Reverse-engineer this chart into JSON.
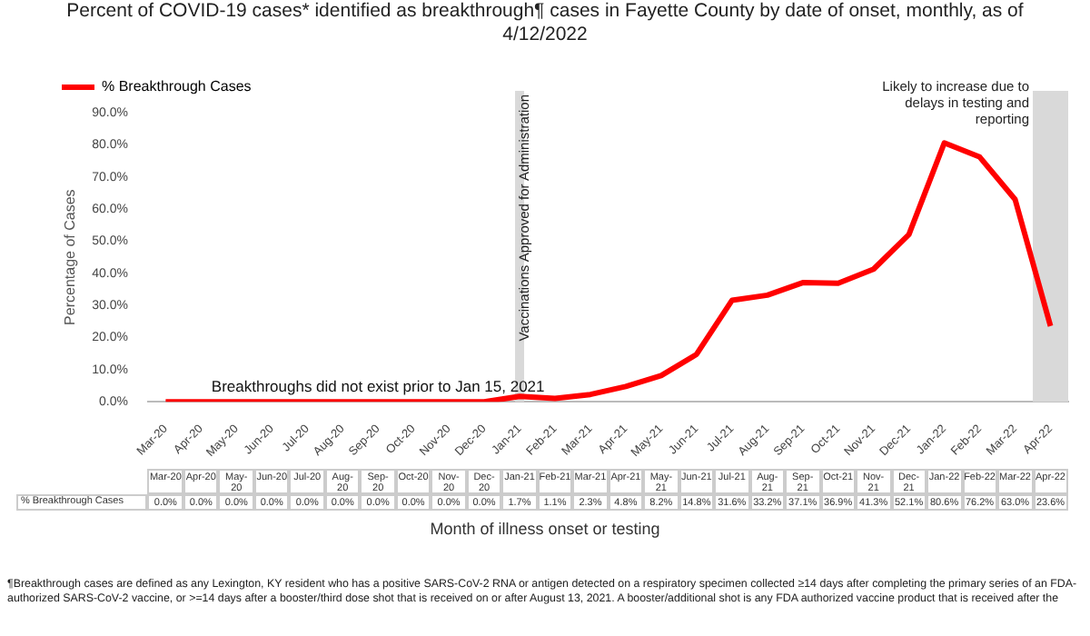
{
  "chart_data": {
    "type": "line",
    "title": "Percent of COVID-19 cases* identified as breakthrough¶ cases in Fayette County by date of onset, monthly, as of 4/12/2022",
    "xlabel": "Month of illness onset or testing",
    "ylabel": "Percentage of Cases",
    "categories": [
      "Mar-20",
      "Apr-20",
      "May-20",
      "Jun-20",
      "Jul-20",
      "Aug-20",
      "Sep-20",
      "Oct-20",
      "Nov-20",
      "Dec-20",
      "Jan-21",
      "Feb-21",
      "Mar-21",
      "Apr-21",
      "May-21",
      "Jun-21",
      "Jul-21",
      "Aug-21",
      "Sep-21",
      "Oct-21",
      "Nov-21",
      "Dec-21",
      "Jan-22",
      "Feb-22",
      "Mar-22",
      "Apr-22"
    ],
    "series": [
      {
        "name": "% Breakthrough Cases",
        "color": "#ff0000",
        "values": [
          0,
          0,
          0,
          0,
          0,
          0,
          0,
          0,
          0,
          0,
          1.7,
          1.1,
          2.3,
          4.8,
          8.2,
          14.8,
          31.6,
          33.2,
          37.1,
          36.9,
          41.3,
          52.1,
          80.6,
          76.2,
          63.0,
          23.6
        ],
        "value_labels": [
          "0.0%",
          "0.0%",
          "0.0%",
          "0.0%",
          "0.0%",
          "0.0%",
          "0.0%",
          "0.0%",
          "0.0%",
          "0.0%",
          "1.7%",
          "1.1%",
          "2.3%",
          "4.8%",
          "8.2%",
          "14.8%",
          "31.6%",
          "33.2%",
          "37.1%",
          "36.9%",
          "41.3%",
          "52.1%",
          "80.6%",
          "76.2%",
          "63.0%",
          "23.6%"
        ]
      }
    ],
    "ylim": [
      0,
      90
    ],
    "yticks": [
      {
        "value": 0,
        "label": "0.0%"
      },
      {
        "value": 10,
        "label": "10.0%"
      },
      {
        "value": 20,
        "label": "20.0%"
      },
      {
        "value": 30,
        "label": "30.0%"
      },
      {
        "value": 40,
        "label": "40.0%"
      },
      {
        "value": 50,
        "label": "50.0%"
      },
      {
        "value": 60,
        "label": "60.0%"
      },
      {
        "value": 70,
        "label": "70.0%"
      },
      {
        "value": 80,
        "label": "80.0%"
      },
      {
        "value": 90,
        "label": "90.0%"
      }
    ],
    "grid": false,
    "legend": "top left",
    "marker": "none",
    "line_style": "solid",
    "ref_lines": [
      {
        "axis": "x",
        "value": "Jan-21",
        "label": "Vaccinations Approved for Administration",
        "color": "#d9d9d9"
      }
    ],
    "bands": [
      {
        "axis": "x",
        "from": "Apr-22",
        "to": "Apr-22",
        "label": "Likely to increase due to delays in testing and reporting",
        "color": "#d9d9d9"
      }
    ],
    "annotations": [
      {
        "text": "Breakthroughs did not exist prior to Jan 15, 2021",
        "x": "Sep-20",
        "y": 0
      },
      "¶Breakthrough cases are defined as any Lexington, KY resident who has a positive SARS-CoV-2 RNA or antigen detected on a respiratory specimen collected ≥14 days after completing the primary series of an FDA-authorized SARS-CoV-2 vaccine, or >=14 days after a booster/third dose shot that is received on or after August 13, 2021.  A booster/additional shot is any FDA authorized vaccine product that is received after the"
    ]
  }
}
